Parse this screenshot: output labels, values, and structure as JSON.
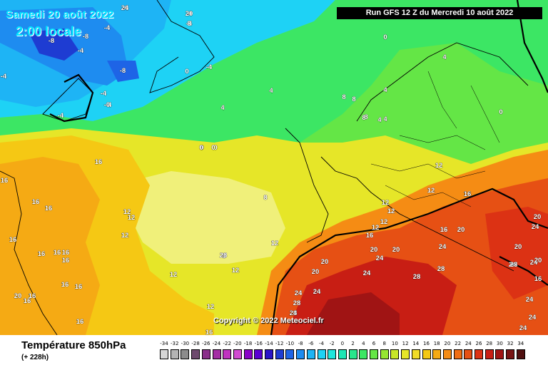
{
  "header": {
    "date_line1": "Samedi 20 août 2022",
    "date_line2": "2:00 locale",
    "run_info": "Run GFS 12 Z du Mercredi 10 août 2022"
  },
  "copyright": "Copyright © 2022 Meteociel.fr",
  "legend": {
    "title": "Température 850hPa",
    "subtitle": "(+ 228h)",
    "scale_values": [
      "-34",
      "-32",
      "-30",
      "-28",
      "-26",
      "-24",
      "-22",
      "-20",
      "-18",
      "-16",
      "-14",
      "-12",
      "-10",
      "-8",
      "-6",
      "-4",
      "-2",
      "0",
      "2",
      "4",
      "6",
      "8",
      "10",
      "12",
      "14",
      "16",
      "18",
      "20",
      "22",
      "24",
      "26",
      "28",
      "30",
      "32",
      "34"
    ],
    "scale_colors": [
      "#d6d6d6",
      "#b4b4b4",
      "#8c8c8c",
      "#6e4a6e",
      "#8a2e8a",
      "#a42ea4",
      "#c032c0",
      "#d24ad2",
      "#8a00c8",
      "#5a00d2",
      "#2a14c8",
      "#1e3cd2",
      "#1e64e6",
      "#1e8cf0",
      "#1eb4f5",
      "#1ed2f5",
      "#1ee6dc",
      "#1ee6b4",
      "#28e68c",
      "#3ce664",
      "#64e646",
      "#96e632",
      "#c8e628",
      "#e6e628",
      "#f0dc28",
      "#f5c814",
      "#f5aa14",
      "#f58c14",
      "#f06e14",
      "#e65014",
      "#dc3214",
      "#c81e14",
      "#a01414",
      "#781414",
      "#501010"
    ],
    "scale_colors_note_none": ""
  },
  "map_labels": [
    {
      "t": "-4"
    },
    {
      "t": "-4"
    },
    {
      "t": "-4"
    },
    {
      "t": "-4"
    },
    {
      "t": "-4"
    },
    {
      "t": "-8"
    },
    {
      "t": "-8"
    },
    {
      "t": "-8"
    },
    {
      "t": "-4"
    },
    {
      "t": "-4"
    },
    {
      "t": "-4"
    },
    {
      "t": "0"
    },
    {
      "t": "-4"
    },
    {
      "t": "-0"
    },
    {
      "t": "-4"
    },
    {
      "t": "0"
    },
    {
      "t": "4"
    },
    {
      "t": "0"
    },
    {
      "t": "4"
    },
    {
      "t": "4"
    },
    {
      "t": "4"
    },
    {
      "t": "8"
    },
    {
      "t": "8"
    },
    {
      "t": "8"
    },
    {
      "t": "4"
    },
    {
      "t": "4"
    },
    {
      "t": "0"
    },
    {
      "t": "0"
    },
    {
      "t": "0"
    },
    {
      "t": "0"
    },
    {
      "t": "8"
    },
    {
      "t": "8"
    },
    {
      "t": "8"
    },
    {
      "t": "12"
    },
    {
      "t": "12"
    },
    {
      "t": "12"
    },
    {
      "t": "16"
    },
    {
      "t": "12"
    },
    {
      "t": "16"
    },
    {
      "t": "16"
    },
    {
      "t": "16"
    },
    {
      "t": "16"
    },
    {
      "t": "16"
    },
    {
      "t": "16"
    },
    {
      "t": "16"
    },
    {
      "t": "16"
    },
    {
      "t": "16"
    },
    {
      "t": "16"
    },
    {
      "t": "16"
    },
    {
      "t": "16"
    },
    {
      "t": "20"
    },
    {
      "t": "16"
    },
    {
      "t": "16"
    },
    {
      "t": "12"
    },
    {
      "t": "12"
    },
    {
      "t": "12"
    },
    {
      "t": "12"
    },
    {
      "t": "12"
    },
    {
      "t": "12"
    },
    {
      "t": "12"
    },
    {
      "t": "16"
    },
    {
      "t": "16"
    },
    {
      "t": "16"
    },
    {
      "t": "12"
    },
    {
      "t": "12"
    },
    {
      "t": "16"
    },
    {
      "t": "20"
    },
    {
      "t": "24"
    },
    {
      "t": "20"
    },
    {
      "t": "20"
    },
    {
      "t": "20"
    },
    {
      "t": "24"
    },
    {
      "t": "28"
    },
    {
      "t": "28"
    },
    {
      "t": "24"
    },
    {
      "t": "24"
    },
    {
      "t": "24"
    },
    {
      "t": "28"
    },
    {
      "t": "28"
    },
    {
      "t": "20"
    },
    {
      "t": "20"
    },
    {
      "t": "24"
    },
    {
      "t": "20"
    },
    {
      "t": "24"
    },
    {
      "t": "24"
    },
    {
      "t": "20"
    },
    {
      "t": "16"
    },
    {
      "t": "24"
    },
    {
      "t": "24"
    },
    {
      "t": "24"
    },
    {
      "t": "24"
    },
    {
      "t": "28"
    },
    {
      "t": "28"
    },
    {
      "t": "24"
    },
    {
      "t": "20"
    },
    {
      "t": "8"
    }
  ]
}
